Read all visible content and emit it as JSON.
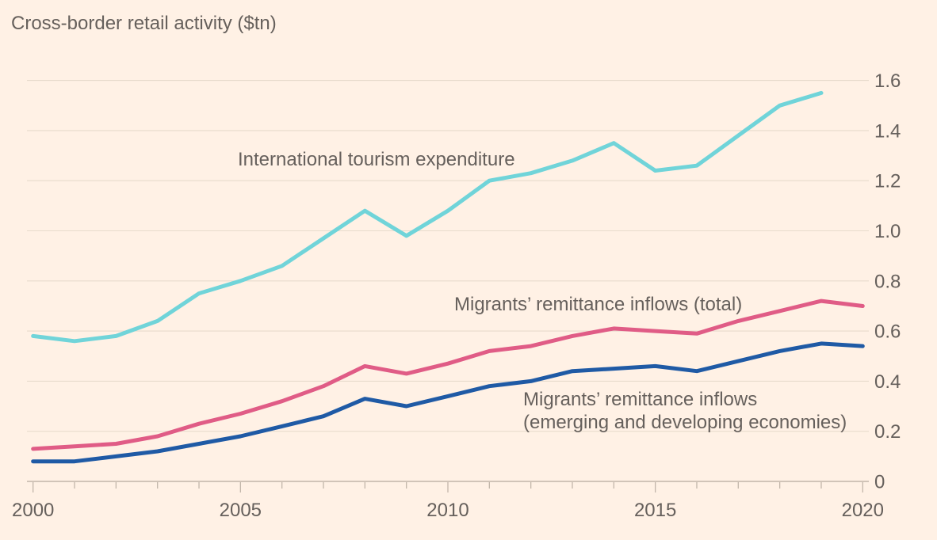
{
  "title": "Cross-border retail activity ($tn)",
  "colors": {
    "background": "#fff1e5",
    "text": "#66605c",
    "gridline": "#e8dbcc",
    "axis": "#c2b6aa",
    "tourism_line": "#70d4d9",
    "remittance_total_line": "#e05c86",
    "remittance_emerging_line": "#1f5aa5"
  },
  "chart_data": {
    "type": "line",
    "title": "Cross-border retail activity ($tn)",
    "xlabel": "",
    "ylabel": "$tn",
    "ylim": [
      0,
      1.6
    ],
    "grid": "horizontal",
    "legend_position": "inline-labels",
    "y_ticks": [
      0,
      0.2,
      0.4,
      0.6,
      0.8,
      1.0,
      1.2,
      1.4,
      1.6
    ],
    "y_tick_labels": [
      "0",
      "0.2",
      "0.4",
      "0.6",
      "0.8",
      "1.0",
      "1.2",
      "1.4",
      "1.6"
    ],
    "x_ticks_years": [
      2000,
      2001,
      2002,
      2003,
      2004,
      2005,
      2006,
      2007,
      2008,
      2009,
      2010,
      2011,
      2012,
      2013,
      2014,
      2015,
      2016,
      2017,
      2018,
      2019,
      2020
    ],
    "x_major_tick_labels": [
      "2000",
      "2005",
      "2010",
      "2015",
      "2020"
    ],
    "x_major_tick_years": [
      2000,
      2005,
      2010,
      2015,
      2020
    ],
    "series": [
      {
        "name": "International tourism expenditure",
        "color_key": "tourism_line",
        "years": [
          2000,
          2001,
          2002,
          2003,
          2004,
          2005,
          2006,
          2007,
          2008,
          2009,
          2010,
          2011,
          2012,
          2013,
          2014,
          2015,
          2016,
          2017,
          2018,
          2019
        ],
        "values": [
          0.58,
          0.56,
          0.58,
          0.64,
          0.75,
          0.8,
          0.86,
          0.97,
          1.08,
          0.98,
          1.08,
          1.2,
          1.23,
          1.28,
          1.35,
          1.24,
          1.26,
          1.38,
          1.5,
          1.55
        ]
      },
      {
        "name": "Migrants’ remittance inflows (total)",
        "color_key": "remittance_total_line",
        "years": [
          2000,
          2001,
          2002,
          2003,
          2004,
          2005,
          2006,
          2007,
          2008,
          2009,
          2010,
          2011,
          2012,
          2013,
          2014,
          2015,
          2016,
          2017,
          2018,
          2019,
          2020
        ],
        "values": [
          0.13,
          0.14,
          0.15,
          0.18,
          0.23,
          0.27,
          0.32,
          0.38,
          0.46,
          0.43,
          0.47,
          0.52,
          0.54,
          0.58,
          0.61,
          0.6,
          0.59,
          0.64,
          0.68,
          0.72,
          0.7
        ]
      },
      {
        "name": "Migrants’ remittance inflows (emerging and developing economies)",
        "color_key": "remittance_emerging_line",
        "years": [
          2000,
          2001,
          2002,
          2003,
          2004,
          2005,
          2006,
          2007,
          2008,
          2009,
          2010,
          2011,
          2012,
          2013,
          2014,
          2015,
          2016,
          2017,
          2018,
          2019,
          2020
        ],
        "values": [
          0.08,
          0.08,
          0.1,
          0.12,
          0.15,
          0.18,
          0.22,
          0.26,
          0.33,
          0.3,
          0.34,
          0.38,
          0.4,
          0.44,
          0.45,
          0.46,
          0.44,
          0.48,
          0.52,
          0.55,
          0.54
        ]
      }
    ],
    "annotations": {
      "tourism_label": "International tourism expenditure",
      "total_label": "Migrants’ remittance inflows (total)",
      "emerging_label_line1": "Migrants’ remittance inflows",
      "emerging_label_line2": "(emerging and developing economies)"
    }
  }
}
